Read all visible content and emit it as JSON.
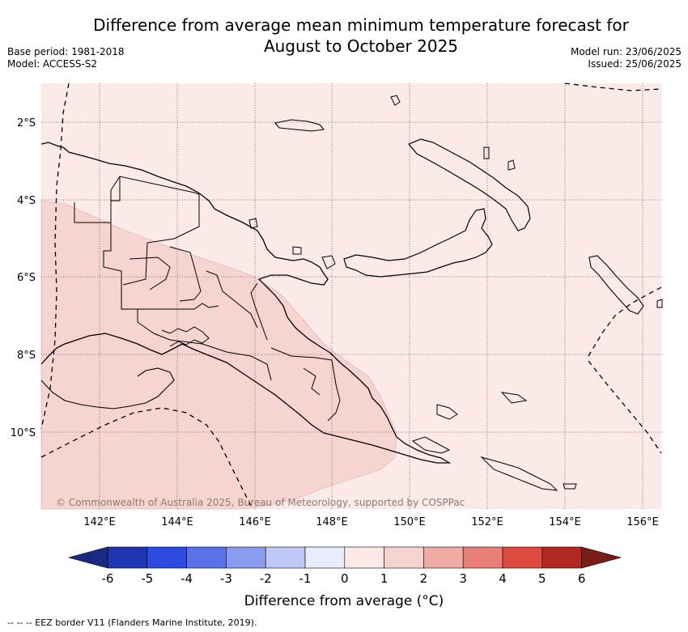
{
  "title_line1": "Difference from average mean minimum temperature forecast for",
  "title_line2": "August to October 2025",
  "base_period": "Base period: 1981-2018",
  "model": "Model: ACCESS-S2",
  "model_run": "Model run: 23/06/2025",
  "issued": "Issued: 25/06/2025",
  "lat_labels": [
    "2°S",
    "4°S",
    "6°S",
    "8°S",
    "10°S"
  ],
  "lon_labels": [
    "142°E",
    "144°E",
    "146°E",
    "148°E",
    "150°E",
    "152°E",
    "154°E",
    "156°E"
  ],
  "copyright": "© Commonwealth of Australia 2025, Bureau of Meteorology, supported by COSPPac",
  "colorbar": {
    "label": "Difference from average (°C)",
    "ticks": [
      "-6",
      "-5",
      "-4",
      "-3",
      "-2",
      "-1",
      "0",
      "1",
      "2",
      "3",
      "4",
      "5",
      "6"
    ],
    "colors": [
      "#1a2a80",
      "#2036b0",
      "#2c4be0",
      "#5a72e8",
      "#8a9cf0",
      "#c0c8f6",
      "#e8ecfb",
      "#fbeae8",
      "#f6d4d0",
      "#f0aca4",
      "#e88078",
      "#dc4a40",
      "#b02820",
      "#7a1c18"
    ]
  },
  "map": {
    "category_colors": {
      "zero_to_one": "#fbeae8",
      "one_to_two": "#f6d4d0"
    }
  },
  "footer": "--  --  -- EEZ border V11 (Flanders Marine Institute, 2019)."
}
